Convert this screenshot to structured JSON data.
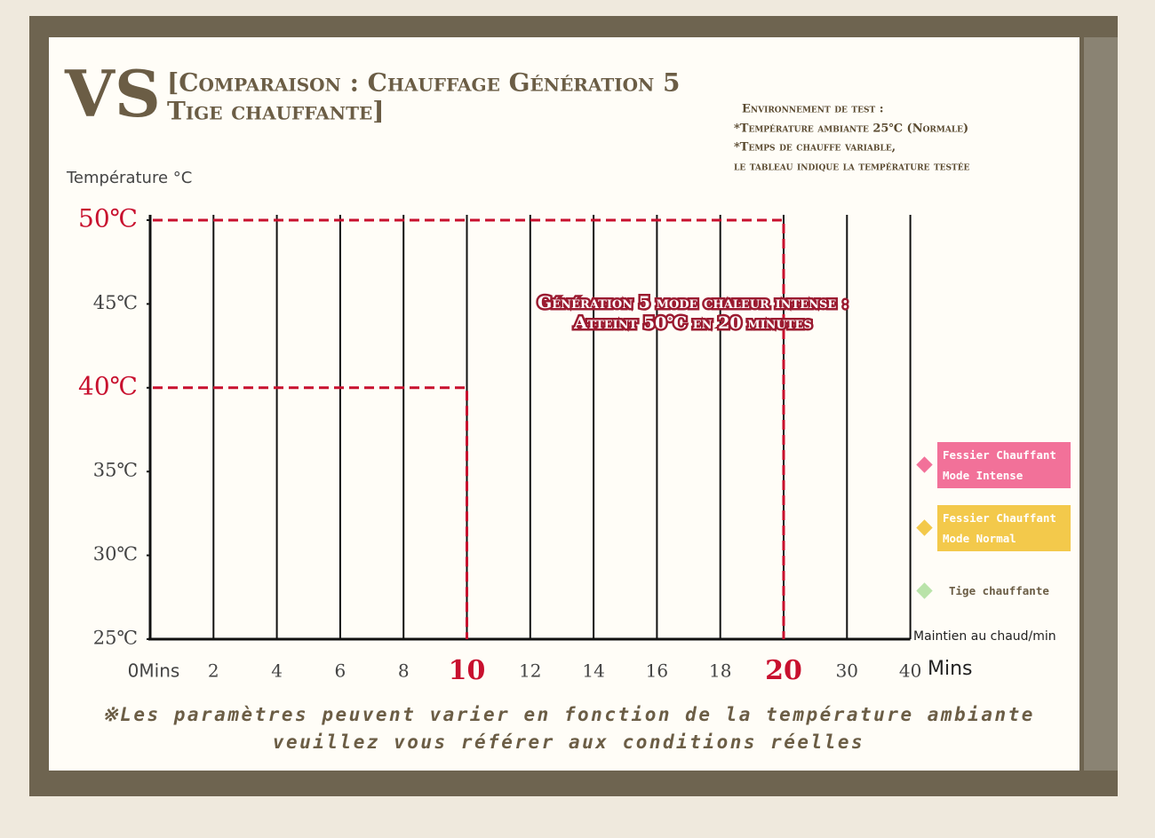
{
  "header": {
    "vs": "VS",
    "title_lines": [
      "[Comparaison : Chauffage Génération 5",
      "Tige chauffante]"
    ]
  },
  "test_environment": [
    "Environnement de test :",
    "*Température ambiante 25℃ (Normale)",
    "*Temps de chauffe variable,",
    "le tableau indique la température testée"
  ],
  "chart_data": {
    "type": "reference",
    "y_label": "Température °C",
    "x_note": "Maintien au chaud/min",
    "x_unit": "Mins",
    "categories": [
      "0Mins",
      "2",
      "4",
      "6",
      "8",
      "10",
      "12",
      "14",
      "16",
      "18",
      "20",
      "30",
      "40"
    ],
    "ylim": [
      25,
      50
    ],
    "yticks": [
      {
        "value": 25,
        "label": "25℃"
      },
      {
        "value": 30,
        "label": "30℃"
      },
      {
        "value": 35,
        "label": "35℃"
      },
      {
        "value": 40,
        "label": "40℃"
      },
      {
        "value": 45,
        "label": "45℃"
      },
      {
        "value": 50,
        "label": "50℃"
      }
    ],
    "reference_lines": [
      {
        "x": "10",
        "y": 40
      },
      {
        "x": "20",
        "y": 50
      }
    ],
    "reference_color": "#c8102e",
    "annotation": [
      "Génération 5 mode chaleur intense :",
      "Atteint 50℃ en 20 minutes"
    ],
    "legend": [
      {
        "name": "Fessier Chauffant Mode Intense",
        "color": "#f27199"
      },
      {
        "name": "Fessier Chauffant Mode Normal",
        "color": "#f3c94b"
      },
      {
        "name": "Tige chauffante",
        "color": "#b9e3a9"
      }
    ]
  },
  "footnote": [
    "※Les paramètres peuvent varier en fonction de la température ambiante",
    "veuillez vous référer aux conditions réelles"
  ]
}
